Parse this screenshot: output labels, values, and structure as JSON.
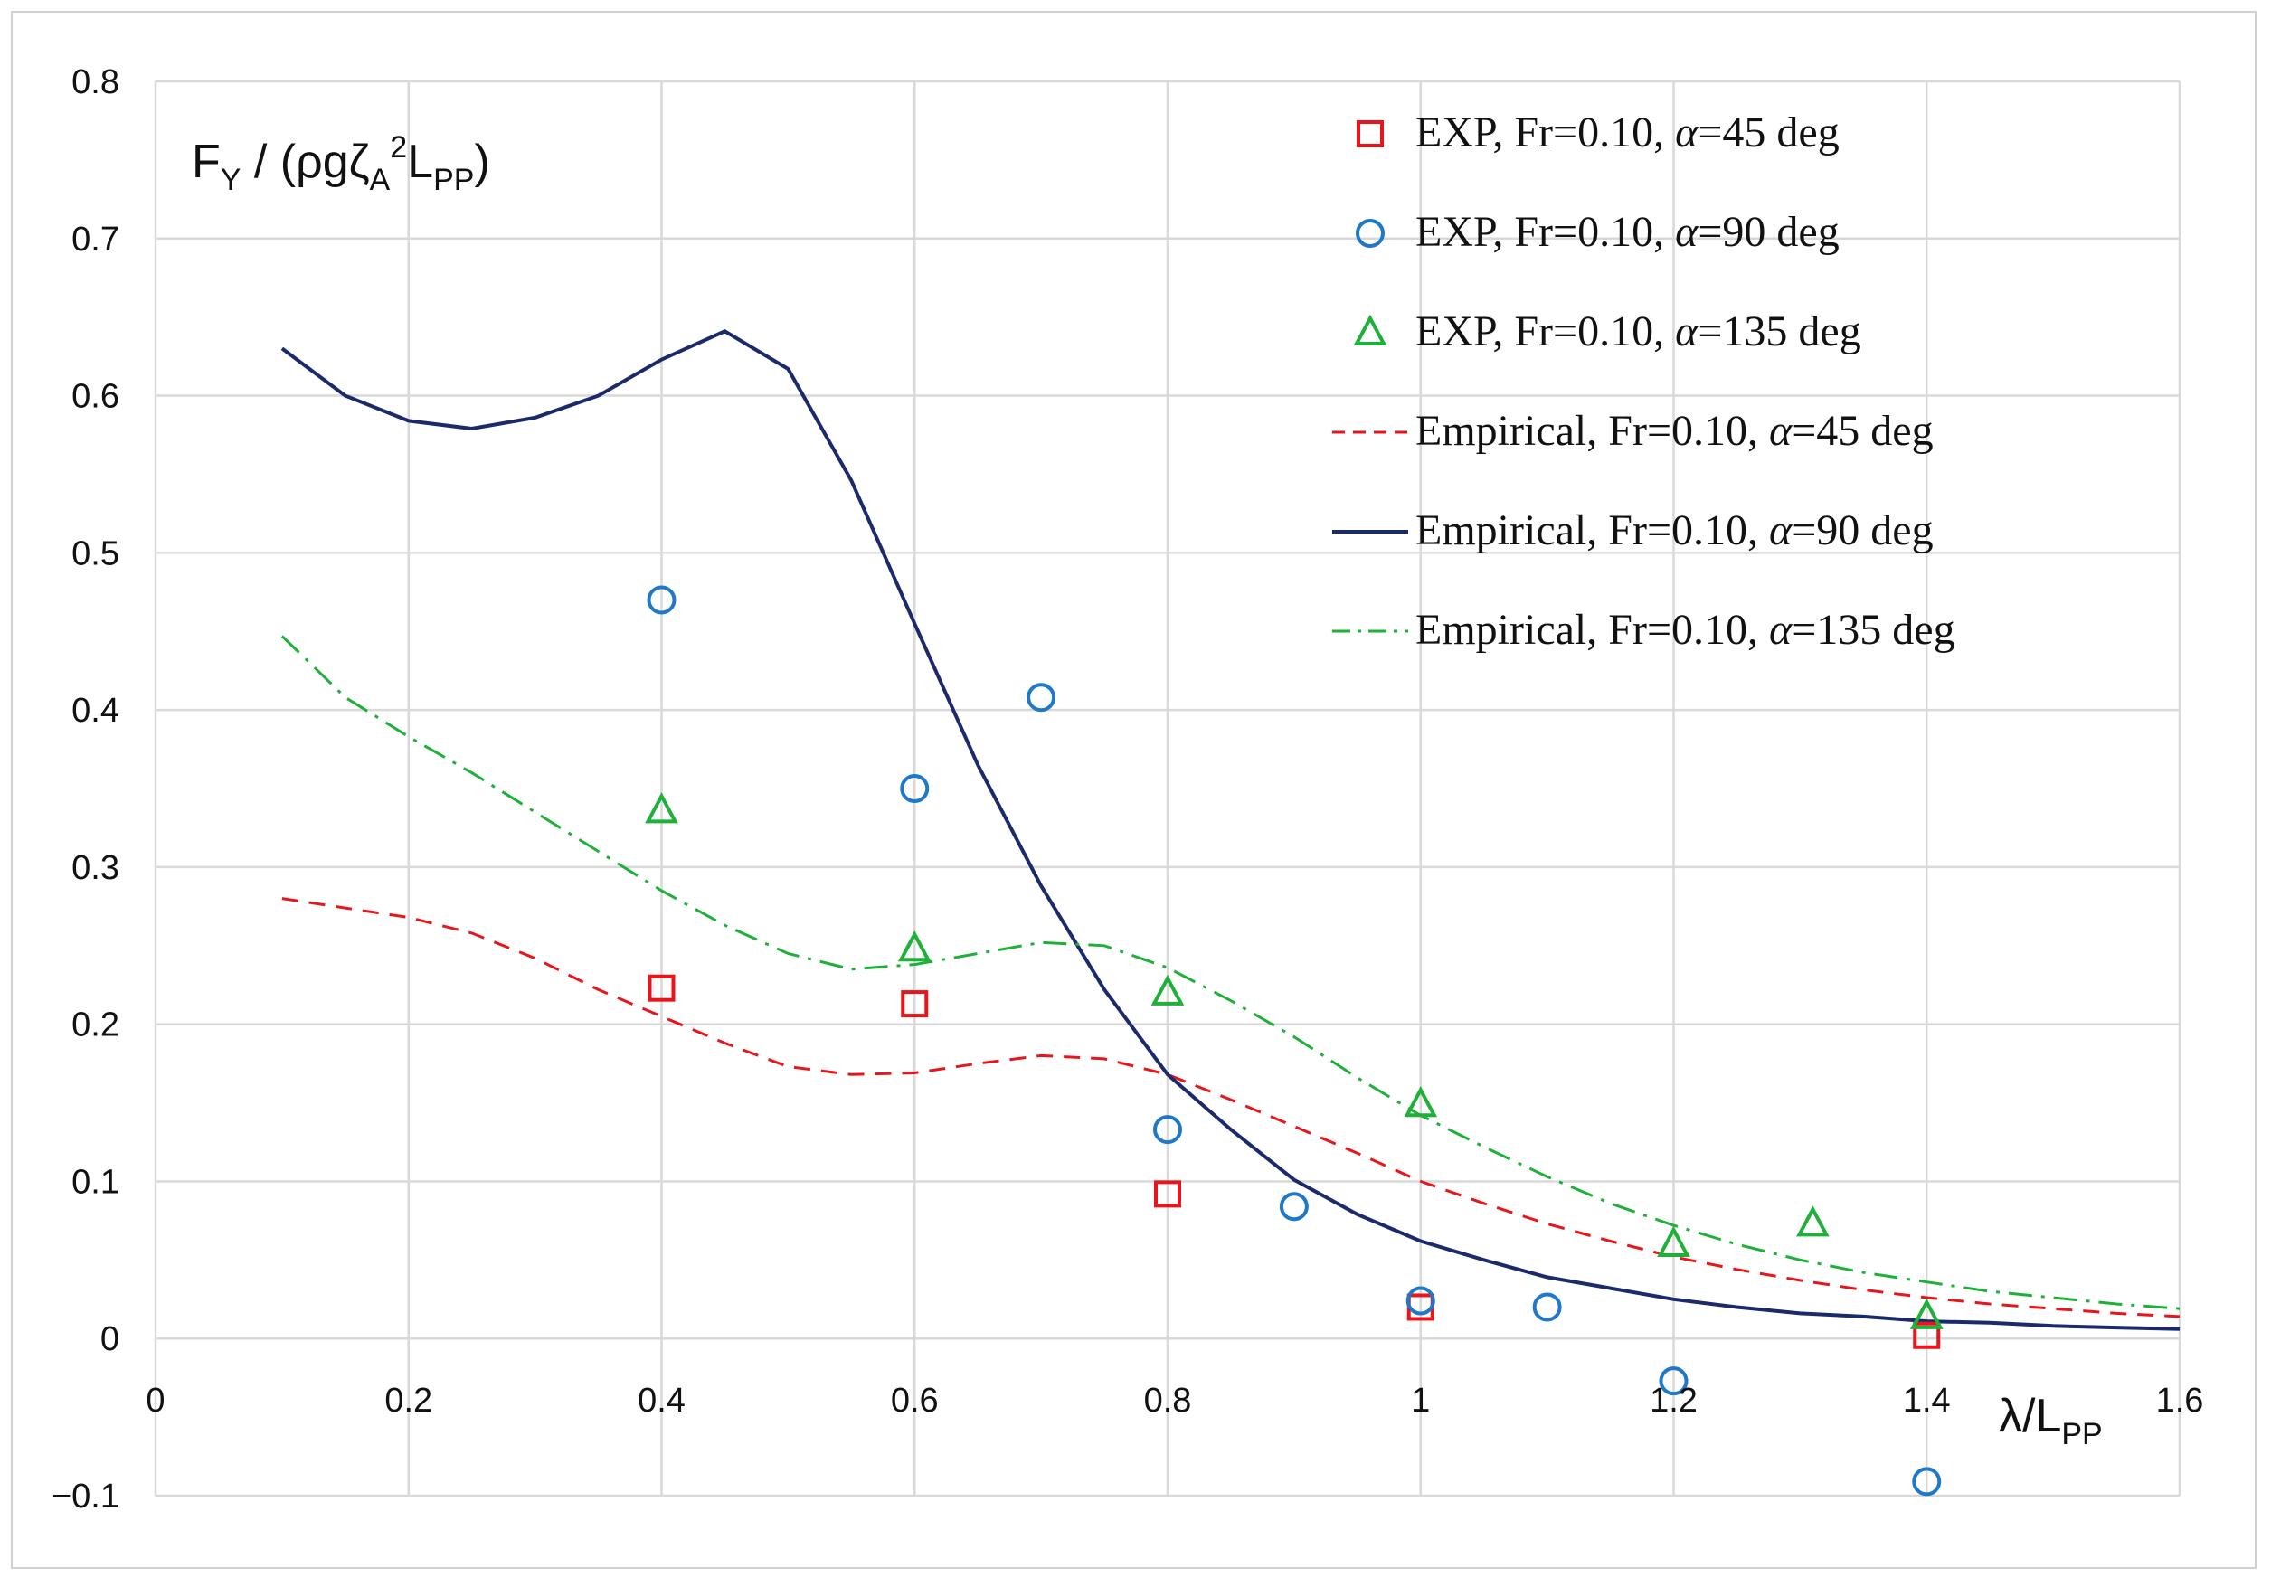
{
  "chart_data": {
    "type": "line",
    "title": "",
    "ylabel": {
      "main": "F",
      "sub1": "Y",
      "mid": " / (ρgζ",
      "sub2": "A",
      "sup": "2",
      "mid2": "L",
      "sub3": "PP",
      "end": ")"
    },
    "xlabel": {
      "main": "λ/L",
      "sub": "PP"
    },
    "xlim": [
      0,
      1.6
    ],
    "ylim": [
      -0.1,
      0.8
    ],
    "xticks": [
      0,
      0.2,
      0.4,
      0.6,
      0.8,
      1,
      1.2,
      1.4,
      1.6
    ],
    "xtick_labels": [
      "0",
      "0.2",
      "0.4",
      "0.6",
      "0.8",
      "1",
      "1.2",
      "1.4",
      "1.6"
    ],
    "yticks": [
      -0.1,
      0,
      0.1,
      0.2,
      0.3,
      0.4,
      0.5,
      0.6,
      0.7,
      0.8
    ],
    "ytick_labels": [
      "−0.1",
      "0",
      "0.1",
      "0.2",
      "0.3",
      "0.4",
      "0.5",
      "0.6",
      "0.7",
      "0.8"
    ],
    "grid": true,
    "legend_position": "top-right",
    "series": [
      {
        "name": "EXP, Fr=0.10, α=45 deg",
        "label_prefix": "EXP, Fr=0.10, ",
        "label_alpha": "α",
        "label_suffix": "=45 deg",
        "kind": "marker",
        "marker": "square",
        "color": "#e8161b",
        "x": [
          0.4,
          0.6,
          0.8,
          1.0,
          1.4
        ],
        "y": [
          0.223,
          0.213,
          0.092,
          0.02,
          0.002
        ]
      },
      {
        "name": "EXP, Fr=0.10, α=90 deg",
        "label_prefix": "EXP, Fr=0.10, ",
        "label_alpha": "α",
        "label_suffix": "=90 deg",
        "kind": "marker",
        "marker": "circle",
        "color": "#1f78c8",
        "x": [
          0.4,
          0.6,
          0.7,
          0.8,
          0.9,
          1.0,
          1.1,
          1.2,
          1.4
        ],
        "y": [
          0.47,
          0.35,
          0.408,
          0.133,
          0.084,
          0.024,
          0.02,
          -0.027,
          -0.091
        ]
      },
      {
        "name": "EXP, Fr=0.10, α=135 deg",
        "label_prefix": "EXP, Fr=0.10, ",
        "label_alpha": "α",
        "label_suffix": "=135 deg",
        "kind": "marker",
        "marker": "triangle",
        "color": "#1fb03a",
        "x": [
          0.4,
          0.6,
          0.8,
          1.0,
          1.2,
          1.31,
          1.4
        ],
        "y": [
          0.336,
          0.248,
          0.22,
          0.149,
          0.06,
          0.073,
          0.014
        ]
      },
      {
        "name": "Empirical, Fr=0.10, α=45 deg",
        "label_prefix": "Empirical,  Fr=0.10, ",
        "label_alpha": "α",
        "label_suffix": "=45 deg",
        "kind": "line",
        "dash": "dashed",
        "color": "#e8161b",
        "x": [
          0.1,
          0.15,
          0.2,
          0.25,
          0.3,
          0.35,
          0.4,
          0.45,
          0.5,
          0.55,
          0.6,
          0.65,
          0.7,
          0.75,
          0.8,
          0.85,
          0.9,
          0.95,
          1.0,
          1.05,
          1.1,
          1.15,
          1.2,
          1.25,
          1.3,
          1.35,
          1.4,
          1.45,
          1.5,
          1.55,
          1.6
        ],
        "y": [
          0.28,
          0.274,
          0.268,
          0.258,
          0.242,
          0.222,
          0.205,
          0.188,
          0.173,
          0.168,
          0.169,
          0.175,
          0.18,
          0.178,
          0.168,
          0.152,
          0.135,
          0.118,
          0.1,
          0.086,
          0.073,
          0.062,
          0.052,
          0.044,
          0.037,
          0.031,
          0.026,
          0.022,
          0.019,
          0.016,
          0.014
        ]
      },
      {
        "name": "Empirical, Fr=0.10, α=90 deg",
        "label_prefix": "Empirical,  Fr=0.10, ",
        "label_alpha": "α",
        "label_suffix": "=90 deg",
        "kind": "line",
        "dash": "solid",
        "color": "#1b2a6b",
        "x": [
          0.1,
          0.15,
          0.2,
          0.25,
          0.3,
          0.35,
          0.4,
          0.45,
          0.5,
          0.55,
          0.6,
          0.65,
          0.7,
          0.75,
          0.8,
          0.85,
          0.9,
          0.95,
          1.0,
          1.05,
          1.1,
          1.15,
          1.2,
          1.25,
          1.3,
          1.35,
          1.4,
          1.45,
          1.5,
          1.55,
          1.6
        ],
        "y": [
          0.63,
          0.6,
          0.584,
          0.579,
          0.586,
          0.6,
          0.623,
          0.641,
          0.617,
          0.546,
          0.455,
          0.365,
          0.288,
          0.222,
          0.168,
          0.133,
          0.101,
          0.079,
          0.062,
          0.05,
          0.039,
          0.032,
          0.025,
          0.02,
          0.016,
          0.014,
          0.011,
          0.01,
          0.008,
          0.007,
          0.006
        ]
      },
      {
        "name": "Empirical, Fr=0.10, α=135 deg",
        "label_prefix": "Empirical,  Fr=0.10, ",
        "label_alpha": "α",
        "label_suffix": "=135 deg",
        "kind": "line",
        "dash": "dashdot",
        "color": "#1fb03a",
        "x": [
          0.1,
          0.15,
          0.2,
          0.25,
          0.3,
          0.35,
          0.4,
          0.45,
          0.5,
          0.55,
          0.6,
          0.65,
          0.7,
          0.75,
          0.8,
          0.85,
          0.9,
          0.95,
          1.0,
          1.05,
          1.1,
          1.15,
          1.2,
          1.25,
          1.3,
          1.35,
          1.4,
          1.45,
          1.5,
          1.55,
          1.6
        ],
        "y": [
          0.447,
          0.408,
          0.383,
          0.36,
          0.335,
          0.31,
          0.285,
          0.263,
          0.245,
          0.235,
          0.238,
          0.245,
          0.252,
          0.25,
          0.236,
          0.215,
          0.192,
          0.166,
          0.142,
          0.122,
          0.103,
          0.086,
          0.072,
          0.06,
          0.05,
          0.042,
          0.036,
          0.03,
          0.026,
          0.022,
          0.019
        ]
      }
    ]
  }
}
